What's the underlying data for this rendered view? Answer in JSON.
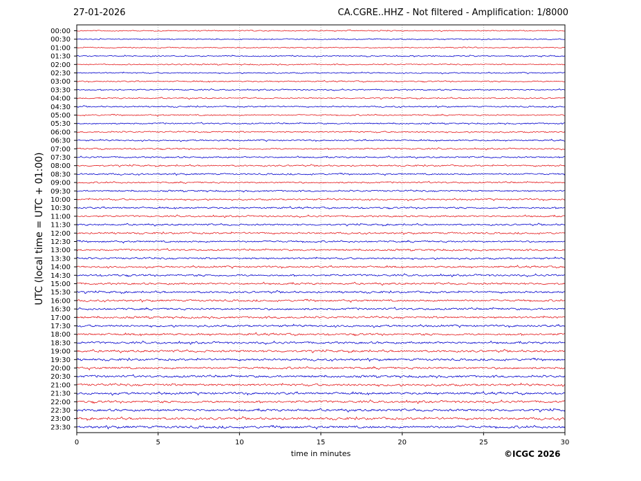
{
  "header": {
    "date": "27-01-2026",
    "station": "CA.CGRE..HHZ - Not filtered - Amplification: 1/8000"
  },
  "footer": {
    "copyright": "©ICGC 2026"
  },
  "chart_data": {
    "type": "line",
    "title": "CA.CGRE..HHZ - Not filtered - Amplification: 1/8000",
    "xlabel": "time in minutes",
    "ylabel": "UTC (local time = UTC + 01:00)",
    "xlim": [
      0,
      30
    ],
    "x_ticks": [
      0,
      5,
      10,
      15,
      20,
      25,
      30
    ],
    "grid": "vertical dotted lines at each x tick",
    "row_labels": [
      "00:00",
      "00:30",
      "01:00",
      "01:30",
      "02:00",
      "02:30",
      "03:00",
      "03:30",
      "04:00",
      "04:30",
      "05:00",
      "05:30",
      "06:00",
      "06:30",
      "07:00",
      "07:30",
      "08:00",
      "08:30",
      "09:00",
      "09:30",
      "10:00",
      "10:30",
      "11:00",
      "11:30",
      "12:00",
      "12:30",
      "13:00",
      "13:30",
      "14:00",
      "14:30",
      "15:00",
      "15:30",
      "16:00",
      "16:30",
      "17:00",
      "17:30",
      "18:00",
      "18:30",
      "19:00",
      "19:30",
      "20:00",
      "20:30",
      "21:00",
      "21:30",
      "22:00",
      "22:30",
      "23:00",
      "23:30"
    ],
    "trace_colors": [
      "#e41a1c",
      "#0000cc"
    ],
    "trace_pattern": "alternating red and blue seismic noise traces, one per 30-minute row, amplitude growing slightly toward later hours"
  }
}
